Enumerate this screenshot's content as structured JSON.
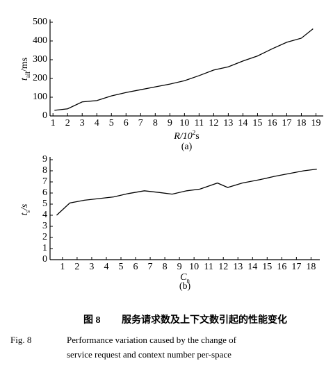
{
  "chart_data": [
    {
      "type": "line",
      "y_label": {
        "text": "t",
        "sub": "all",
        "suffix": "/ms"
      },
      "x_label": {
        "text": "R/10",
        "sup": "2",
        "suffix": "s"
      },
      "caption": "(a)",
      "xlim": [
        0.8,
        19.5
      ],
      "xticks": [
        1,
        2,
        3,
        4,
        5,
        6,
        7,
        8,
        9,
        10,
        11,
        12,
        13,
        14,
        15,
        16,
        17,
        18,
        19
      ],
      "ylim": [
        0,
        500
      ],
      "yticks": [
        0,
        100,
        200,
        300,
        400,
        500
      ],
      "series": [
        {
          "color": "#000000",
          "x": [
            1.1,
            2,
            3,
            4,
            5,
            6,
            7,
            8,
            9,
            10,
            11,
            12,
            13,
            14,
            15,
            16,
            17,
            18,
            18.8
          ],
          "values": [
            30,
            38,
            75,
            82,
            107,
            125,
            140,
            155,
            170,
            188,
            215,
            245,
            262,
            293,
            320,
            358,
            393,
            415,
            465
          ]
        }
      ]
    },
    {
      "type": "line",
      "y_label": {
        "text": "t",
        "sub": "s",
        "suffix": "/s"
      },
      "x_label": {
        "text": "C",
        "sub": "n"
      },
      "caption": "(b)",
      "xlim": [
        0.15,
        18.6
      ],
      "xticks": [
        1,
        2,
        3,
        4,
        5,
        6,
        7,
        8,
        9,
        10,
        11,
        12,
        13,
        14,
        15,
        16,
        17,
        18
      ],
      "ylim": [
        0,
        9
      ],
      "yticks": [
        0,
        1,
        2,
        3,
        4,
        5,
        6,
        7,
        8,
        9
      ],
      "series": [
        {
          "color": "#000000",
          "x": [
            0.6,
            1.5,
            2.5,
            3.5,
            4.5,
            5.5,
            6.6,
            7.6,
            8.5,
            9.5,
            10.4,
            11.6,
            12.3,
            13.3,
            14.5,
            15.5,
            16.5,
            17.5,
            18.4
          ],
          "values": [
            4,
            5.1,
            5.35,
            5.5,
            5.65,
            5.95,
            6.2,
            6.05,
            5.9,
            6.2,
            6.35,
            6.9,
            6.5,
            6.9,
            7.2,
            7.5,
            7.75,
            8.0,
            8.15
          ]
        }
      ]
    }
  ],
  "figure_caption": {
    "cn_label": "图 8",
    "cn_text": "服务请求数及上下文数引起的性能变化",
    "en_label": "Fig. 8",
    "en_lines": [
      "Performance variation caused by the change of",
      "service request and context number per-space"
    ]
  }
}
